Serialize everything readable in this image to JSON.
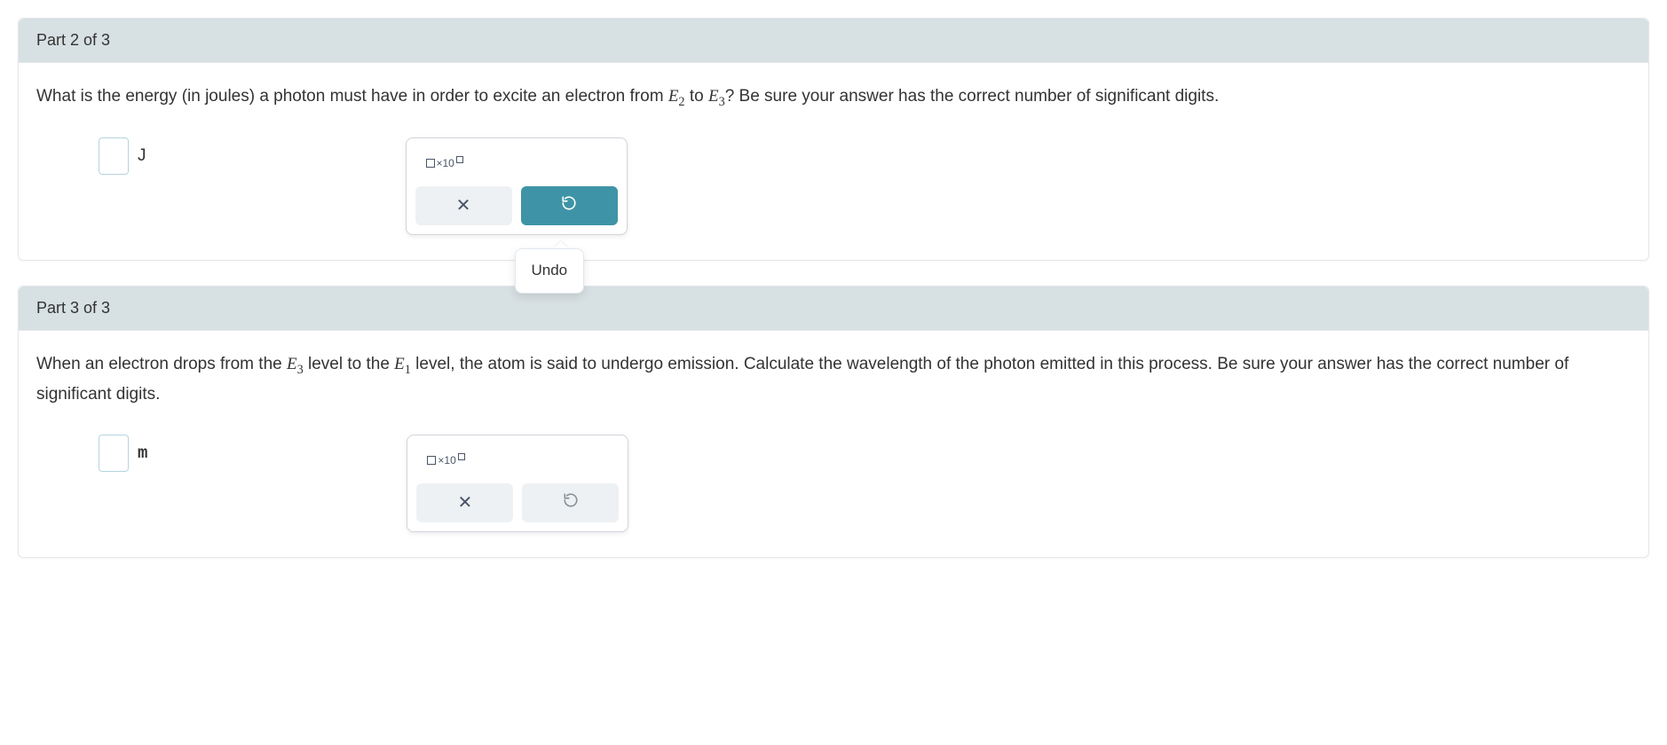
{
  "colors": {
    "header_bg": "#d7e0e3",
    "border": "#e5e7eb",
    "input_border": "#b6d4de",
    "toolbox_border": "#d1d5db",
    "text": "#333333",
    "btn_inactive_bg": "#eef1f3",
    "btn_active_bg": "#3e94a6",
    "btn_active_fg": "#ffffff",
    "icon_muted": "#4a5568"
  },
  "tooltip": {
    "undo": "Undo"
  },
  "sci_button": {
    "label": "×10"
  },
  "parts": [
    {
      "header": "Part 2 of 3",
      "q_pre": "What is the energy (in joules) a photon must have in order to excite an electron from ",
      "q_sym1": "E",
      "q_sub1": "2",
      "q_mid": " to ",
      "q_sym2": "E",
      "q_sub2": "3",
      "q_post": "? Be sure your answer has the correct number of significant digits.",
      "unit": "J",
      "unit_mono": false,
      "undo_active": true,
      "show_tooltip": true
    },
    {
      "header": "Part 3 of 3",
      "q_pre": "When an electron drops from the ",
      "q_sym1": "E",
      "q_sub1": "3",
      "q_mid": " level to the ",
      "q_sym2": "E",
      "q_sub2": "1",
      "q_post": " level, the atom is said to undergo emission. Calculate the wavelength of the photon emitted in this process. Be sure your answer has the correct number of significant digits.",
      "unit": "m",
      "unit_mono": true,
      "undo_active": false,
      "show_tooltip": false
    }
  ]
}
